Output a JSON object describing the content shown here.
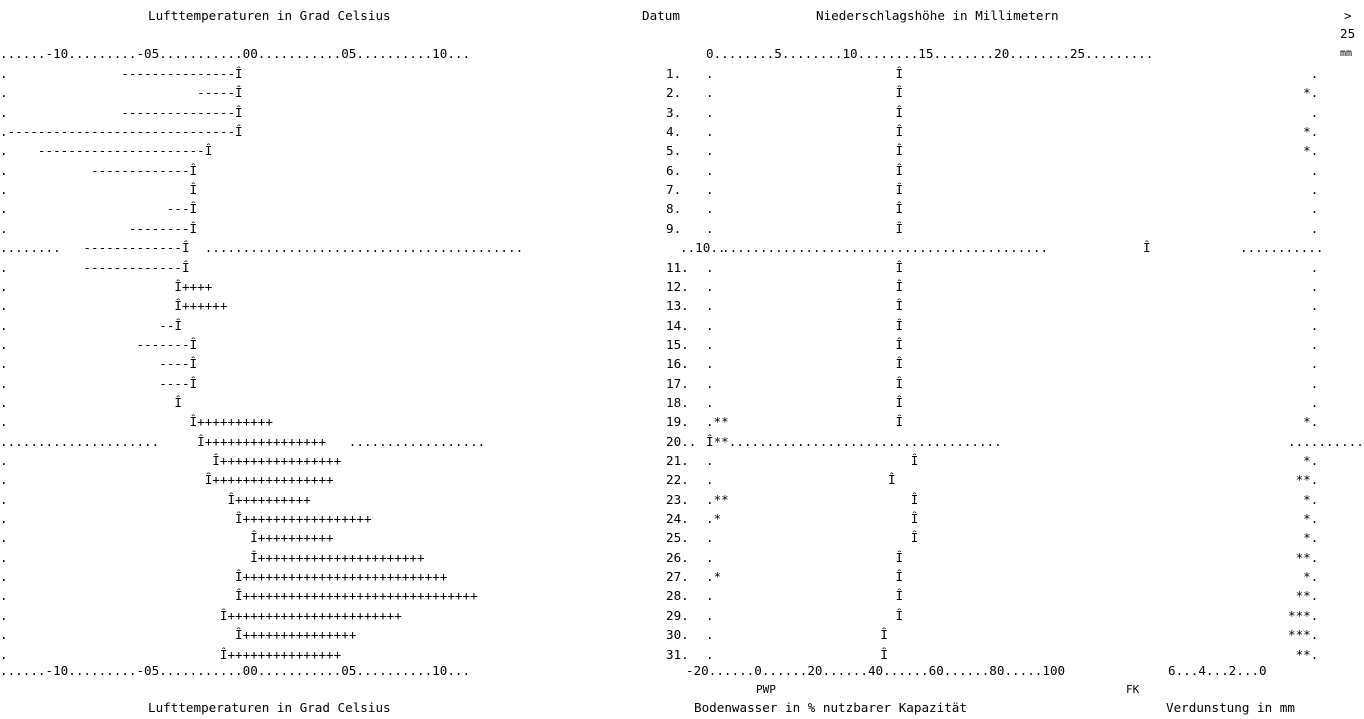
{
  "header": {
    "temp_title": "Lufttemperaturen in Grad Celsius",
    "date_title": "Datum",
    "precip_title": "Niederschlagshöhe in Millimetern",
    "over_marker": ">",
    "over_value": "25",
    "unit_mm": "mm"
  },
  "scales": {
    "temp_top": "......-10.........-05...........00...........05..........10...",
    "temp_bottom": "......-10.........-05...........00...........05..........10...",
    "precip_top": "0........5........10........15........20........25.........",
    "water_bottom": "-20......0......20......40......60......80.....100",
    "evap_bottom": "6...4...2...0",
    "pwp": "PWP",
    "fk": "FK"
  },
  "footer": {
    "temp_title": "Lufttemperaturen in Grad Celsius",
    "water_title": "Bodenwasser in % nutzbarer Kapazität",
    "evap_title": "Verdunstung in mm"
  },
  "rows": [
    {
      "temp": ".               ---------------Î",
      "date": "1.",
      "precip": ".",
      "water": "                         Î",
      "evap": "   ."
    },
    {
      "temp": ".                         -----Î",
      "date": "2.",
      "precip": ".",
      "water": "                         Î",
      "evap": "  *."
    },
    {
      "temp": ".               ---------------Î",
      "date": "3.",
      "precip": ".",
      "water": "                         Î",
      "evap": "   ."
    },
    {
      "temp": ".------------------------------Î",
      "date": "4.",
      "precip": ".",
      "water": "                         Î",
      "evap": "  *."
    },
    {
      "temp": ".    ----------------------Î",
      "date": "5.",
      "precip": ".",
      "water": "                         Î",
      "evap": "  *."
    },
    {
      "temp": ".           -------------Î",
      "date": "6.",
      "precip": ".",
      "water": "                         Î",
      "evap": "   ."
    },
    {
      "temp": ".                        Î",
      "date": "7.",
      "precip": ".",
      "water": "                         Î",
      "evap": "   ."
    },
    {
      "temp": ".                     ---Î",
      "date": "8.",
      "precip": ".",
      "water": "                         Î",
      "evap": "   ."
    },
    {
      "temp": ".                --------Î",
      "date": "9.",
      "precip": ".",
      "water": "                         Î",
      "evap": "   ."
    },
    {
      "temp": "........   -------------Î  ..........................................",
      "date": "..10..",
      "precip": "...........................................",
      "water": "Î",
      "evap": "..........."
    },
    {
      "temp": ".          -------------Î",
      "date": "11.",
      "precip": ".",
      "water": "                         Î",
      "evap": "   ."
    },
    {
      "temp": ".                      Î++++",
      "date": "12.",
      "precip": ".",
      "water": "                         Î",
      "evap": "   ."
    },
    {
      "temp": ".                      Î++++++",
      "date": "13.",
      "precip": ".",
      "water": "                         Î",
      "evap": "   ."
    },
    {
      "temp": ".                    --Î",
      "date": "14.",
      "precip": ".",
      "water": "                         Î",
      "evap": "   ."
    },
    {
      "temp": ".                 -------Î",
      "date": "15.",
      "precip": ".",
      "water": "                         Î",
      "evap": "   ."
    },
    {
      "temp": ".                    ----Î",
      "date": "16.",
      "precip": ".",
      "water": "                         Î",
      "evap": "   ."
    },
    {
      "temp": ".                    ----Î",
      "date": "17.",
      "precip": ".",
      "water": "                         Î",
      "evap": "   ."
    },
    {
      "temp": ".                      Î",
      "date": "18.",
      "precip": ".",
      "water": "                         Î",
      "evap": "   ."
    },
    {
      "temp": ".                        Î++++++++++",
      "date": "19.",
      "precip": ".**",
      "water": "                         Î",
      "evap": "  *."
    },
    {
      "temp": ".....................     Î++++++++++++++++   ..................",
      "date": "20..",
      "precip": ".**....................................",
      "water": "Î",
      "evap": "..........."
    },
    {
      "temp": ".                           Î++++++++++++++++",
      "date": "21.",
      "precip": ".",
      "water": "                           Î",
      "evap": "  *."
    },
    {
      "temp": ".                          Î++++++++++++++++",
      "date": "22.",
      "precip": ".",
      "water": "                        Î",
      "evap": " **."
    },
    {
      "temp": ".                             Î++++++++++",
      "date": "23.",
      "precip": ".**",
      "water": "                           Î",
      "evap": "  *."
    },
    {
      "temp": ".                              Î+++++++++++++++++",
      "date": "24.",
      "precip": ".*",
      "water": "                           Î",
      "evap": "  *."
    },
    {
      "temp": ".                                Î++++++++++",
      "date": "25.",
      "precip": ".",
      "water": "                           Î",
      "evap": "  *."
    },
    {
      "temp": ".                                Î++++++++++++++++++++++",
      "date": "26.",
      "precip": ".",
      "water": "                         Î",
      "evap": " **."
    },
    {
      "temp": ".                              Î+++++++++++++++++++++++++++",
      "date": "27.",
      "precip": ".*",
      "water": "                         Î",
      "evap": "  *."
    },
    {
      "temp": ".                              Î+++++++++++++++++++++++++++++++",
      "date": "28.",
      "precip": ".",
      "water": "                         Î",
      "evap": " **."
    },
    {
      "temp": ".                            Î+++++++++++++++++++++++",
      "date": "29.",
      "precip": ".",
      "water": "                         Î",
      "evap": "***."
    },
    {
      "temp": ".                              Î+++++++++++++++",
      "date": "30.",
      "precip": ".",
      "water": "                       Î",
      "evap": "***."
    },
    {
      "temp": ".                            Î+++++++++++++++",
      "date": "31.",
      "precip": ".",
      "water": "                       Î",
      "evap": " **."
    }
  ]
}
